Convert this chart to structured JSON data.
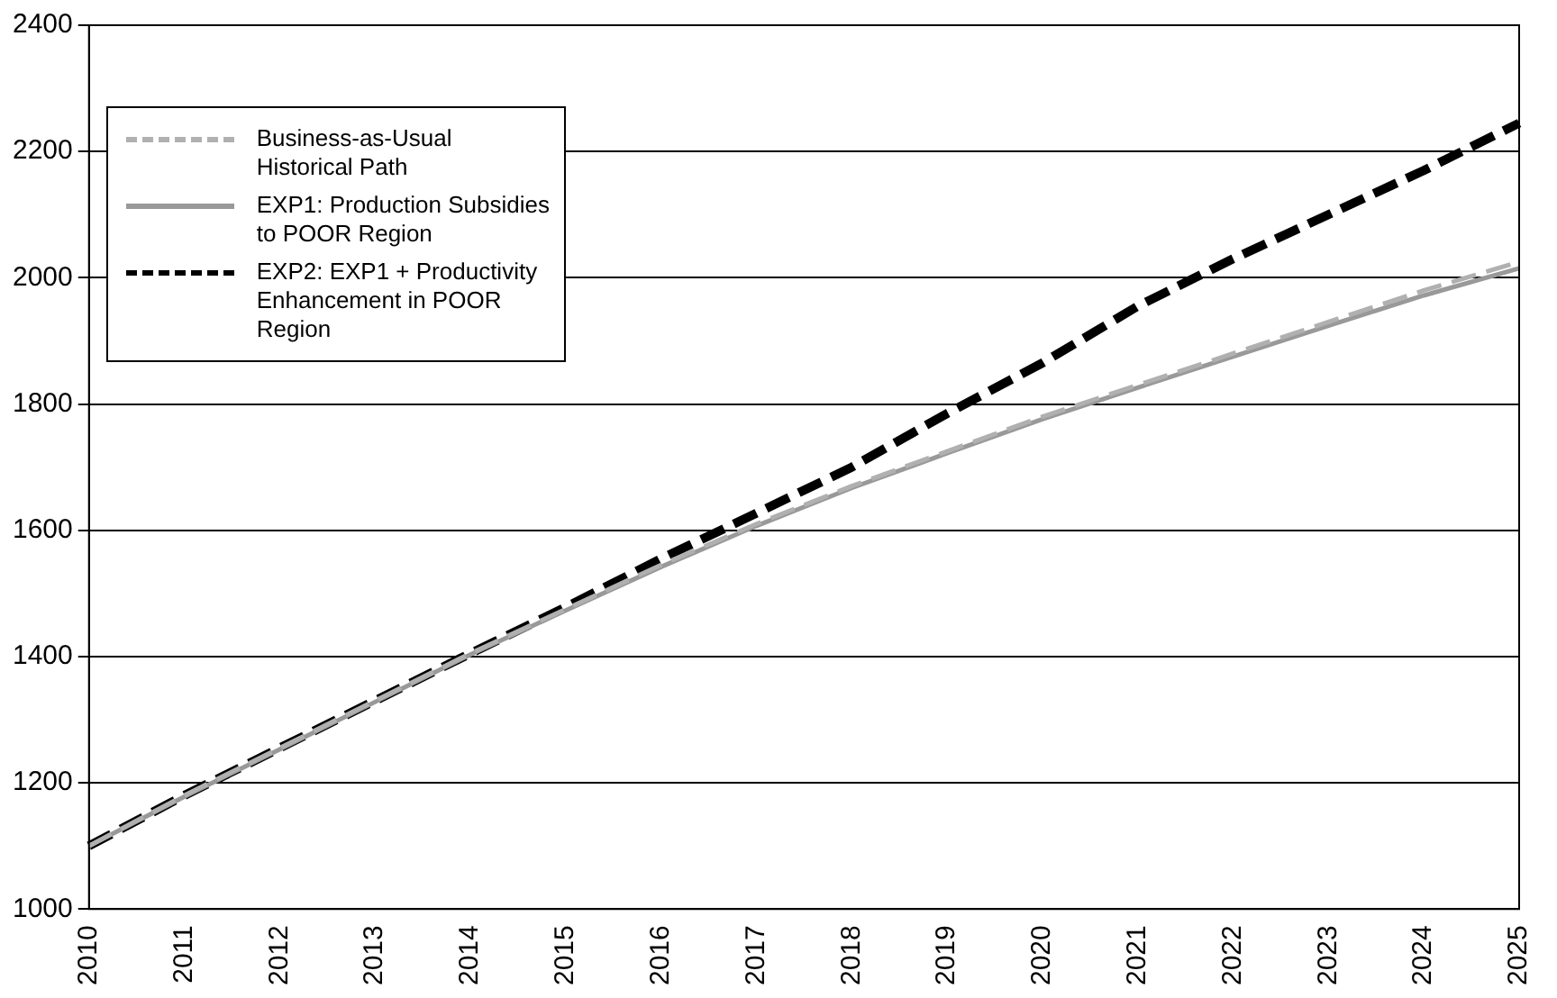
{
  "chart_data": {
    "type": "line",
    "categories": [
      "2010",
      "2011",
      "2012",
      "2013",
      "2014",
      "2015",
      "2016",
      "2017",
      "2018",
      "2019",
      "2020",
      "2021",
      "2022",
      "2023",
      "2024",
      "2025"
    ],
    "series": [
      {
        "name": "Business-as-Usual Historical Path",
        "color": "#b0b0b0",
        "line_style": "dashed",
        "values": [
          1100,
          1180,
          1255,
          1330,
          1405,
          1475,
          1545,
          1610,
          1670,
          1725,
          1780,
          1830,
          1880,
          1930,
          1980,
          2025
        ]
      },
      {
        "name": "EXP1: Production Subsidies to POOR Region",
        "color": "#999999",
        "line_style": "solid",
        "values": [
          1100,
          1178,
          1253,
          1328,
          1403,
          1473,
          1542,
          1607,
          1667,
          1722,
          1776,
          1826,
          1875,
          1924,
          1972,
          2015
        ]
      },
      {
        "name": "EXP2: EXP1 + Productivity Enhancement in POOR Region",
        "color": "#000000",
        "line_style": "dashed",
        "values": [
          1100,
          1180,
          1255,
          1330,
          1405,
          1478,
          1555,
          1627,
          1700,
          1785,
          1865,
          1955,
          2030,
          2100,
          2170,
          2245
        ]
      }
    ],
    "ylim": [
      1000,
      2400
    ],
    "yticks": [
      1000,
      1200,
      1400,
      1600,
      1800,
      2000,
      2200,
      2400
    ],
    "grid": "y",
    "legend": "top left",
    "marker": "none"
  }
}
